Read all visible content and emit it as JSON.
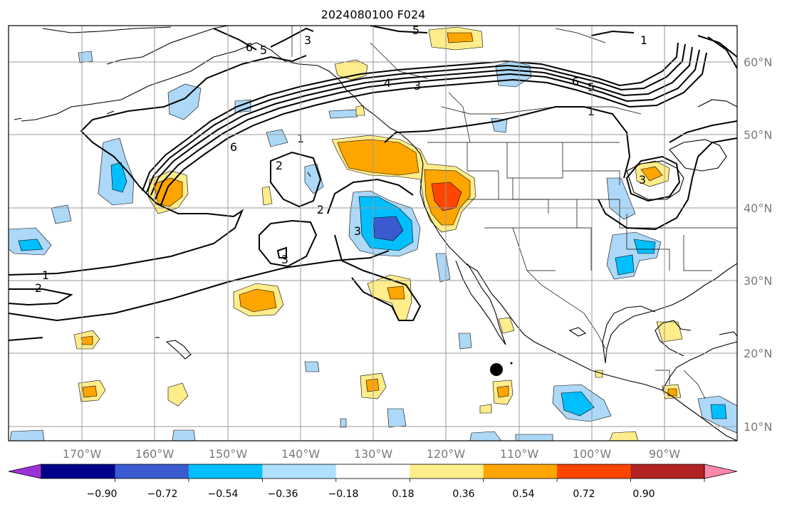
{
  "title": "2024080100 F024",
  "map": {
    "lon_labels": [
      "170°W",
      "160°W",
      "150°W",
      "140°W",
      "130°W",
      "120°W",
      "110°W",
      "100°W",
      "90°W"
    ],
    "lat_labels": [
      "60°N",
      "50°N",
      "40°N",
      "30°N",
      "20°N",
      "10°N"
    ],
    "contour_labels": [
      "1",
      "2",
      "3",
      "4",
      "5",
      "6"
    ],
    "marker": "storm-center-dot"
  },
  "colorbar": {
    "ticks": [
      "−0.90",
      "−0.72",
      "−0.54",
      "−0.36",
      "−0.18",
      "0.18",
      "0.36",
      "0.54",
      "0.72",
      "0.90"
    ],
    "colors": [
      "#9b30d9",
      "#00008b",
      "#3a5bd0",
      "#00bfff",
      "#b0e0ff",
      "#ffffff",
      "#ffec8b",
      "#ffa500",
      "#ff4500",
      "#b22222",
      "#ff88aa"
    ]
  },
  "colors": {
    "light_blue": "#add8f7",
    "blue": "#00bfff",
    "dark_blue": "#3a5bd0",
    "yellow": "#ffec8b",
    "orange": "#ffa500",
    "red": "#ff4500"
  }
}
